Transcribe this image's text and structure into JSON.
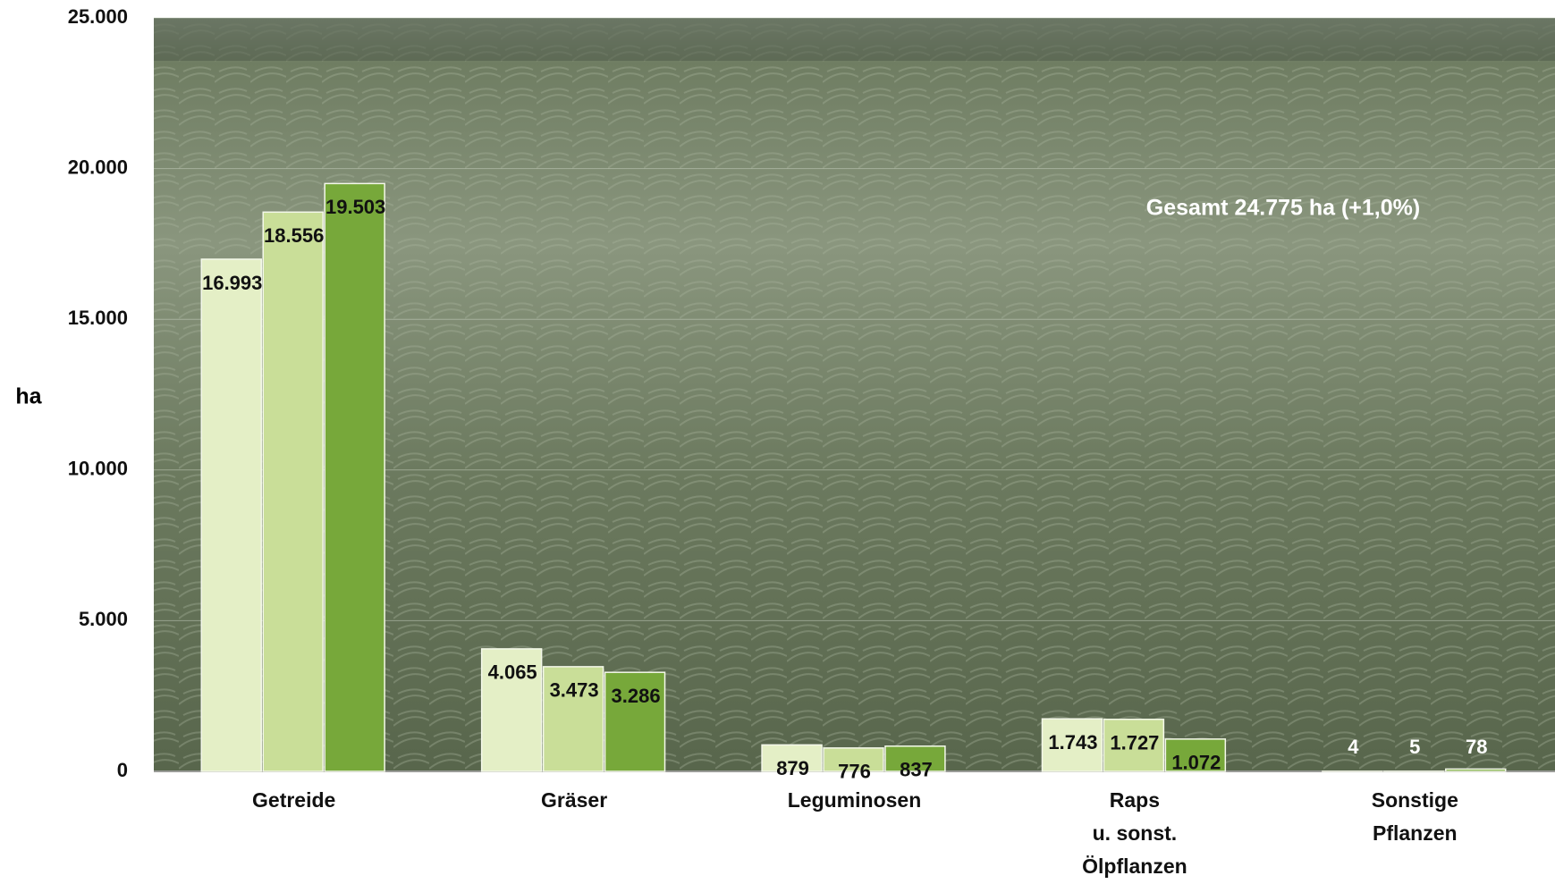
{
  "chart_data": {
    "type": "bar",
    "y_label": "ha",
    "annotation": "Gesamt 24.775 ha (+1,0%)",
    "categories": [
      "Getreide",
      "Gräser",
      "Leguminosen",
      "Raps\nu. sonst.\nÖlpflanzen",
      "Sonstige\nPflanzen"
    ],
    "series": [
      {
        "color": "#e4efc6",
        "values": [
          16993,
          4065,
          879,
          1743,
          4
        ],
        "value_labels": [
          "16.993",
          "4.065",
          "879",
          "1.743",
          "4"
        ]
      },
      {
        "color": "#c9de98",
        "values": [
          18556,
          3473,
          776,
          1727,
          5
        ],
        "value_labels": [
          "18.556",
          "3.473",
          "776",
          "1.727",
          "5"
        ]
      },
      {
        "color": "#77a83a",
        "values": [
          19503,
          3286,
          837,
          1072,
          78
        ],
        "value_labels": [
          "19.503",
          "3.286",
          "837",
          "1.072",
          "78"
        ]
      }
    ],
    "ylim": [
      0,
      25000
    ],
    "yticks": [
      0,
      {
        "value": 5000,
        "label": "5.000"
      },
      {
        "value": 10000,
        "label": "10.000"
      },
      {
        "value": 15000,
        "label": "15.000"
      },
      {
        "value": 20000,
        "label": "20.000"
      },
      {
        "value": 25000,
        "label": "25.000"
      }
    ],
    "grid": true
  }
}
